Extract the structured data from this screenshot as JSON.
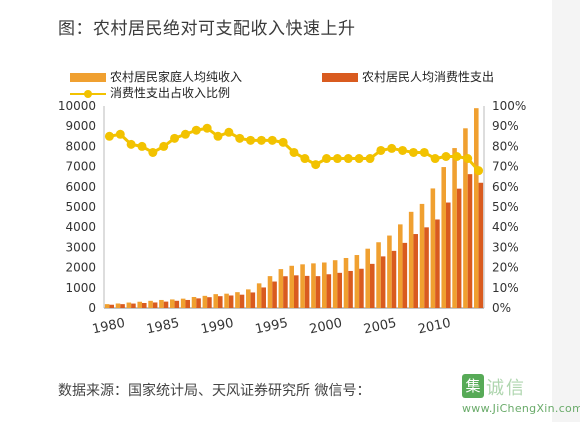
{
  "title": "图：农村居民绝对可支配收入快速上升",
  "source": "数据来源：国家统计局、天风证券研究所 微信号：",
  "watermark": {
    "badge": "集",
    "text": "诚信",
    "url": "www.JiChengXin.com"
  },
  "colors": {
    "income": "#f0a030",
    "consumption": "#d95b1f",
    "ratio": "#f2c200"
  },
  "chart_data": {
    "type": "bar",
    "series": [
      {
        "name": "农村居民家庭人均纯收入",
        "type": "bar",
        "axis": "left"
      },
      {
        "name": "农村居民人均消费性支出",
        "type": "bar",
        "axis": "left"
      },
      {
        "name": "消费性支出占收入比例",
        "type": "line",
        "axis": "right"
      }
    ],
    "x": [
      1980,
      1981,
      1982,
      1983,
      1984,
      1985,
      1986,
      1987,
      1988,
      1989,
      1990,
      1991,
      1992,
      1993,
      1994,
      1995,
      1996,
      1997,
      1998,
      1999,
      2000,
      2001,
      2002,
      2003,
      2004,
      2005,
      2006,
      2007,
      2008,
      2009,
      2010,
      2011,
      2012,
      2013,
      2014
    ],
    "income": [
      191,
      223,
      270,
      310,
      355,
      398,
      424,
      463,
      545,
      602,
      686,
      709,
      784,
      922,
      1221,
      1578,
      1926,
      2090,
      2162,
      2210,
      2253,
      2366,
      2476,
      2622,
      2936,
      3255,
      3587,
      4140,
      4761,
      5153,
      5919,
      6977,
      7917,
      8896,
      9892
    ],
    "consumption": [
      162,
      191,
      220,
      248,
      274,
      317,
      357,
      398,
      477,
      535,
      585,
      620,
      659,
      770,
      1017,
      1310,
      1572,
      1617,
      1590,
      1577,
      1670,
      1741,
      1834,
      1943,
      2185,
      2555,
      2829,
      3224,
      3661,
      3993,
      4382,
      5221,
      5908,
      6626,
      6200
    ],
    "ratio": [
      85,
      86,
      81,
      80,
      77,
      80,
      84,
      86,
      88,
      89,
      85,
      87,
      84,
      83,
      83,
      83,
      82,
      77,
      74,
      71,
      74,
      74,
      74,
      74,
      74,
      78,
      79,
      78,
      77,
      77,
      74,
      75,
      75,
      74,
      68
    ],
    "x_ticks": [
      "1980",
      "1985",
      "1990",
      "1995",
      "2000",
      "2005",
      "2010"
    ],
    "y_left_ticks": [
      "0",
      "1000",
      "2000",
      "3000",
      "4000",
      "5000",
      "6000",
      "7000",
      "8000",
      "9000",
      "10000"
    ],
    "y_right_ticks": [
      "0%",
      "10%",
      "20%",
      "30%",
      "40%",
      "50%",
      "60%",
      "70%",
      "80%",
      "90%",
      "100%"
    ],
    "ylim_left": [
      0,
      10000
    ],
    "ylim_right": [
      0,
      100
    ],
    "legend": "top"
  }
}
